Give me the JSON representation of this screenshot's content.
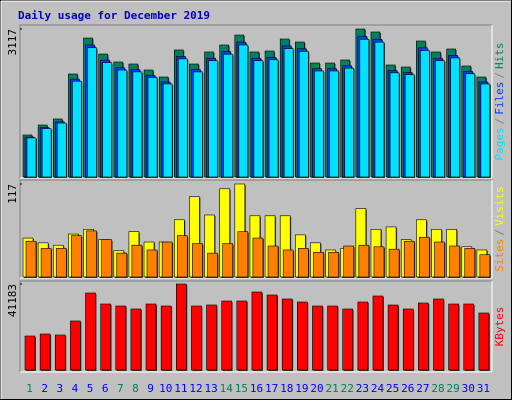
{
  "separator": "/",
  "chart_data": [
    {
      "type": "bar",
      "title": "Daily usage for December 2019",
      "ylim": [
        0,
        3117
      ],
      "yticks": [
        3117
      ],
      "series": [
        {
          "name": "Pages",
          "color": "#00e0ff",
          "values": [
            823,
            1018,
            1136,
            2017,
            2722,
            2409,
            2252,
            2213,
            2095,
            1959,
            2488,
            2213,
            2449,
            2585,
            2781,
            2449,
            2468,
            2703,
            2644,
            2233,
            2233,
            2292,
            2899,
            2840,
            2194,
            2155,
            2664,
            2449,
            2507,
            2174,
            1959
          ]
        },
        {
          "name": "Files",
          "color": "#0040ff",
          "values": [
            841,
            1040,
            1161,
            2061,
            2781,
            2461,
            2301,
            2261,
            2140,
            2001,
            2541,
            2261,
            2501,
            2641,
            2841,
            2501,
            2521,
            2761,
            2701,
            2281,
            2281,
            2341,
            2961,
            2901,
            2241,
            2201,
            2721,
            2501,
            2561,
            2221,
            2001
          ]
        },
        {
          "name": "Hits",
          "color": "#00805c",
          "values": [
            885,
            1095,
            1222,
            2169,
            2927,
            2590,
            2422,
            2380,
            2253,
            2106,
            2675,
            2380,
            2633,
            2780,
            2990,
            2633,
            2654,
            2906,
            2843,
            2401,
            2401,
            2464,
            3117,
            3054,
            2359,
            2317,
            2864,
            2633,
            2696,
            2338,
            2106
          ]
        }
      ]
    },
    {
      "type": "bar",
      "ylim": [
        0,
        117
      ],
      "yticks": [
        117
      ],
      "series": [
        {
          "name": "Sites",
          "color": "#ff8000",
          "values": [
            45,
            36,
            36,
            52,
            58,
            47,
            30,
            40,
            34,
            44,
            52,
            42,
            30,
            42,
            57,
            49,
            39,
            34,
            36,
            31,
            31,
            39,
            40,
            38,
            35,
            45,
            50,
            44,
            39,
            36,
            28
          ]
        },
        {
          "name": "Visits",
          "color": "#ffff00",
          "values": [
            49,
            43,
            40,
            54,
            60,
            47,
            33,
            57,
            44,
            44,
            72,
            101,
            78,
            111,
            117,
            77,
            77,
            77,
            53,
            43,
            34,
            36,
            86,
            60,
            63,
            47,
            72,
            60,
            60,
            38,
            34
          ]
        }
      ]
    },
    {
      "type": "bar",
      "ylim": [
        0,
        41183
      ],
      "yticks": [
        41183
      ],
      "categories": [
        "1",
        "2",
        "3",
        "4",
        "5",
        "6",
        "7",
        "8",
        "9",
        "10",
        "11",
        "12",
        "13",
        "14",
        "15",
        "16",
        "17",
        "18",
        "19",
        "20",
        "21",
        "22",
        "23",
        "24",
        "25",
        "26",
        "27",
        "28",
        "29",
        "30",
        "31"
      ],
      "category_colors": [
        "#00805c",
        "#0000ff",
        "#0000ff",
        "#0000ff",
        "#0000ff",
        "#0000ff",
        "#00805c",
        "#00805c",
        "#0000ff",
        "#0000ff",
        "#0000ff",
        "#0000ff",
        "#0000ff",
        "#00805c",
        "#00805c",
        "#0000ff",
        "#0000ff",
        "#0000ff",
        "#0000ff",
        "#0000ff",
        "#00805c",
        "#00805c",
        "#0000ff",
        "#0000ff",
        "#0000ff",
        "#0000ff",
        "#0000ff",
        "#00805c",
        "#00805c",
        "#0000ff",
        "#0000ff"
      ],
      "series": [
        {
          "name": "KBytes",
          "color": "#ff0000",
          "values": [
            16282,
            17240,
            16761,
            23466,
            36873,
            31605,
            30648,
            29211,
            31605,
            30648,
            41183,
            30648,
            31128,
            33042,
            33042,
            37352,
            35915,
            34000,
            32563,
            30648,
            30648,
            29211,
            32563,
            35437,
            31128,
            29211,
            32084,
            34000,
            31605,
            31605,
            27296
          ]
        }
      ]
    }
  ]
}
